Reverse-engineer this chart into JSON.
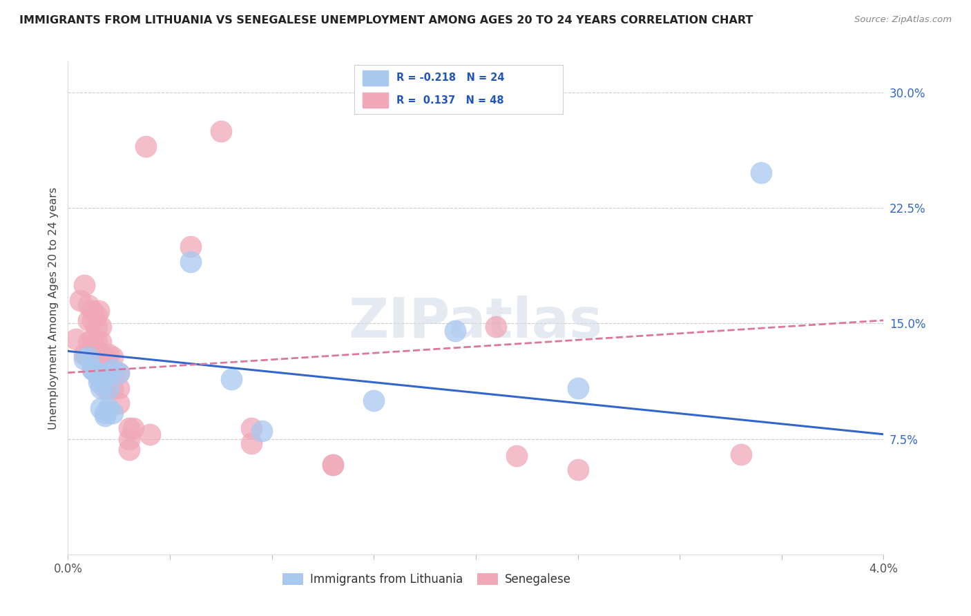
{
  "title": "IMMIGRANTS FROM LITHUANIA VS SENEGALESE UNEMPLOYMENT AMONG AGES 20 TO 24 YEARS CORRELATION CHART",
  "source": "Source: ZipAtlas.com",
  "ylabel": "Unemployment Among Ages 20 to 24 years",
  "right_yticks": [
    0.075,
    0.15,
    0.225,
    0.3
  ],
  "right_yticklabels": [
    "7.5%",
    "15.0%",
    "22.5%",
    "30.0%"
  ],
  "legend_label1": "Immigrants from Lithuania",
  "legend_label2": "Senegalese",
  "R1": -0.218,
  "N1": 24,
  "R2": 0.137,
  "N2": 48,
  "color_blue": "#a8c8f0",
  "color_pink": "#f0a8b8",
  "color_line_blue": "#3366cc",
  "color_line_pink": "#dd7799",
  "watermark": "ZIPatlas",
  "blue_points_x": [
    0.0008,
    0.001,
    0.0012,
    0.0012,
    0.0014,
    0.0015,
    0.0015,
    0.0016,
    0.0016,
    0.0018,
    0.0018,
    0.002,
    0.002,
    0.002,
    0.0022,
    0.0022,
    0.0025,
    0.006,
    0.008,
    0.0095,
    0.015,
    0.019,
    0.025,
    0.034
  ],
  "blue_points_y": [
    0.127,
    0.128,
    0.12,
    0.12,
    0.118,
    0.115,
    0.112,
    0.108,
    0.095,
    0.092,
    0.09,
    0.118,
    0.108,
    0.095,
    0.12,
    0.092,
    0.118,
    0.19,
    0.114,
    0.08,
    0.1,
    0.145,
    0.108,
    0.248
  ],
  "pink_points_x": [
    0.0004,
    0.0006,
    0.0008,
    0.0008,
    0.001,
    0.001,
    0.001,
    0.001,
    0.0012,
    0.0012,
    0.0012,
    0.0014,
    0.0014,
    0.0014,
    0.0014,
    0.0015,
    0.0015,
    0.0016,
    0.0016,
    0.0016,
    0.0018,
    0.0018,
    0.0018,
    0.002,
    0.002,
    0.002,
    0.0022,
    0.0022,
    0.0022,
    0.0025,
    0.0025,
    0.0025,
    0.003,
    0.003,
    0.003,
    0.0032,
    0.0038,
    0.004,
    0.006,
    0.0075,
    0.009,
    0.009,
    0.013,
    0.013,
    0.021,
    0.022,
    0.025,
    0.033
  ],
  "pink_points_y": [
    0.14,
    0.165,
    0.175,
    0.13,
    0.162,
    0.152,
    0.138,
    0.128,
    0.158,
    0.152,
    0.14,
    0.155,
    0.148,
    0.138,
    0.132,
    0.158,
    0.128,
    0.148,
    0.138,
    0.118,
    0.128,
    0.118,
    0.108,
    0.13,
    0.122,
    0.108,
    0.128,
    0.118,
    0.108,
    0.118,
    0.108,
    0.098,
    0.082,
    0.075,
    0.068,
    0.082,
    0.265,
    0.078,
    0.2,
    0.275,
    0.082,
    0.072,
    0.058,
    0.058,
    0.148,
    0.064,
    0.055,
    0.065
  ],
  "xlim": [
    0.0,
    0.04
  ],
  "ylim": [
    0.0,
    0.32
  ],
  "blue_line_x": [
    0.0,
    0.04
  ],
  "blue_line_y": [
    0.132,
    0.078
  ],
  "pink_line_x": [
    0.0,
    0.04
  ],
  "pink_line_y": [
    0.118,
    0.152
  ]
}
